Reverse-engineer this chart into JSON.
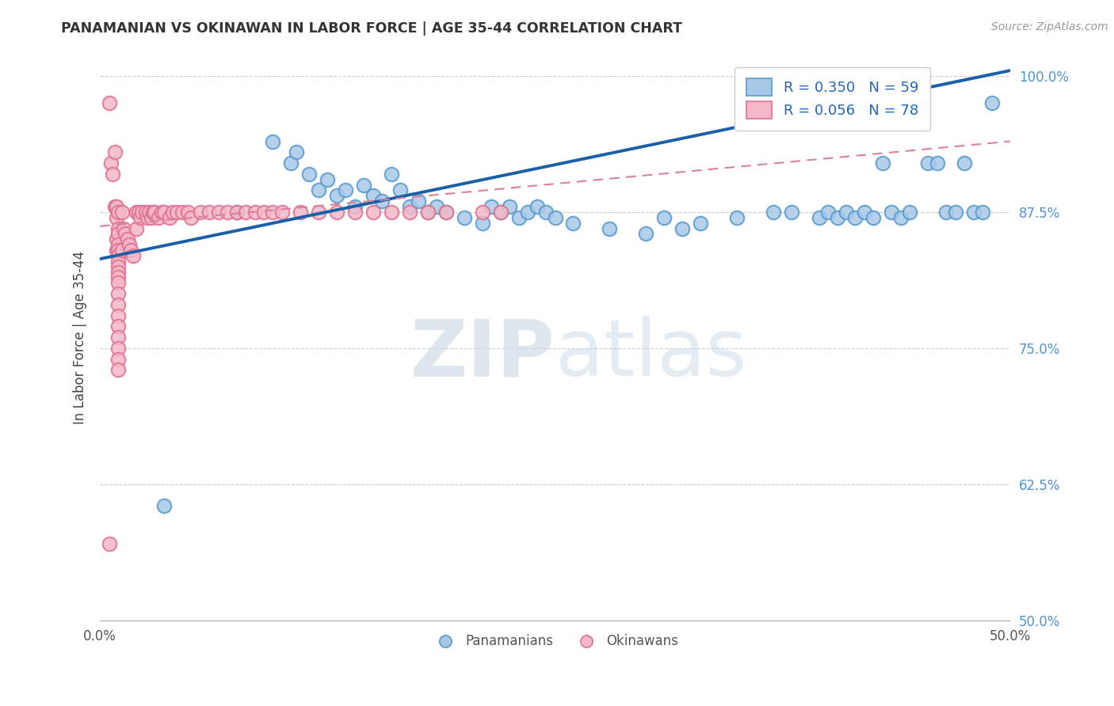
{
  "title": "PANAMANIAN VS OKINAWAN IN LABOR FORCE | AGE 35-44 CORRELATION CHART",
  "source": "Source: ZipAtlas.com",
  "ylabel": "In Labor Force | Age 35-44",
  "xlim": [
    0.0,
    0.5
  ],
  "ylim": [
    0.5,
    1.02
  ],
  "yticks": [
    0.5,
    0.625,
    0.75,
    0.875,
    1.0
  ],
  "yticklabels": [
    "50.0%",
    "62.5%",
    "75.0%",
    "87.5%",
    "100.0%"
  ],
  "blue_R": 0.35,
  "blue_N": 59,
  "pink_R": 0.056,
  "pink_N": 78,
  "blue_color": "#a8c8e8",
  "blue_edge_color": "#5599cc",
  "pink_color": "#f4b8c8",
  "pink_edge_color": "#e07090",
  "blue_line_color": "#1a5fa8",
  "pink_line_color": "#dd8099",
  "watermark_zip": "ZIP",
  "watermark_atlas": "atlas",
  "legend_label_blue": "Panamanians",
  "legend_label_pink": "Okinawans",
  "blue_scatter_x": [
    0.035,
    0.075,
    0.095,
    0.105,
    0.108,
    0.115,
    0.12,
    0.125,
    0.13,
    0.135,
    0.14,
    0.145,
    0.15,
    0.155,
    0.16,
    0.165,
    0.17,
    0.175,
    0.18,
    0.185,
    0.19,
    0.2,
    0.21,
    0.215,
    0.22,
    0.225,
    0.23,
    0.235,
    0.24,
    0.245,
    0.25,
    0.26,
    0.28,
    0.3,
    0.31,
    0.32,
    0.33,
    0.35,
    0.37,
    0.38,
    0.395,
    0.4,
    0.405,
    0.41,
    0.415,
    0.42,
    0.425,
    0.43,
    0.435,
    0.44,
    0.445,
    0.455,
    0.46,
    0.465,
    0.47,
    0.475,
    0.48,
    0.485,
    0.49
  ],
  "blue_scatter_y": [
    0.605,
    0.875,
    0.94,
    0.92,
    0.93,
    0.91,
    0.895,
    0.905,
    0.89,
    0.895,
    0.88,
    0.9,
    0.89,
    0.885,
    0.91,
    0.895,
    0.88,
    0.885,
    0.875,
    0.88,
    0.875,
    0.87,
    0.865,
    0.88,
    0.875,
    0.88,
    0.87,
    0.875,
    0.88,
    0.875,
    0.87,
    0.865,
    0.86,
    0.855,
    0.87,
    0.86,
    0.865,
    0.87,
    0.875,
    0.875,
    0.87,
    0.875,
    0.87,
    0.875,
    0.87,
    0.875,
    0.87,
    0.92,
    0.875,
    0.87,
    0.875,
    0.92,
    0.92,
    0.875,
    0.875,
    0.92,
    0.875,
    0.875,
    0.975
  ],
  "pink_scatter_x": [
    0.005,
    0.005,
    0.006,
    0.007,
    0.008,
    0.008,
    0.009,
    0.009,
    0.009,
    0.009,
    0.01,
    0.01,
    0.01,
    0.01,
    0.01,
    0.01,
    0.01,
    0.01,
    0.01,
    0.01,
    0.01,
    0.01,
    0.01,
    0.01,
    0.01,
    0.01,
    0.01,
    0.01,
    0.01,
    0.012,
    0.012,
    0.013,
    0.014,
    0.015,
    0.016,
    0.017,
    0.018,
    0.02,
    0.02,
    0.021,
    0.022,
    0.023,
    0.025,
    0.026,
    0.027,
    0.028,
    0.029,
    0.03,
    0.032,
    0.034,
    0.035,
    0.038,
    0.04,
    0.042,
    0.045,
    0.048,
    0.05,
    0.055,
    0.06,
    0.065,
    0.07,
    0.075,
    0.08,
    0.085,
    0.09,
    0.095,
    0.1,
    0.11,
    0.12,
    0.13,
    0.14,
    0.15,
    0.16,
    0.17,
    0.18,
    0.19,
    0.21,
    0.22
  ],
  "pink_scatter_y": [
    0.975,
    0.57,
    0.92,
    0.91,
    0.88,
    0.93,
    0.87,
    0.85,
    0.84,
    0.88,
    0.875,
    0.86,
    0.855,
    0.845,
    0.84,
    0.835,
    0.83,
    0.825,
    0.82,
    0.815,
    0.81,
    0.8,
    0.79,
    0.78,
    0.77,
    0.76,
    0.75,
    0.74,
    0.73,
    0.875,
    0.84,
    0.86,
    0.855,
    0.85,
    0.845,
    0.84,
    0.835,
    0.875,
    0.86,
    0.875,
    0.87,
    0.875,
    0.875,
    0.87,
    0.875,
    0.87,
    0.875,
    0.875,
    0.87,
    0.875,
    0.875,
    0.87,
    0.875,
    0.875,
    0.875,
    0.875,
    0.87,
    0.875,
    0.875,
    0.875,
    0.875,
    0.875,
    0.875,
    0.875,
    0.875,
    0.875,
    0.875,
    0.875,
    0.875,
    0.875,
    0.875,
    0.875,
    0.875,
    0.875,
    0.875,
    0.875,
    0.875,
    0.875
  ]
}
